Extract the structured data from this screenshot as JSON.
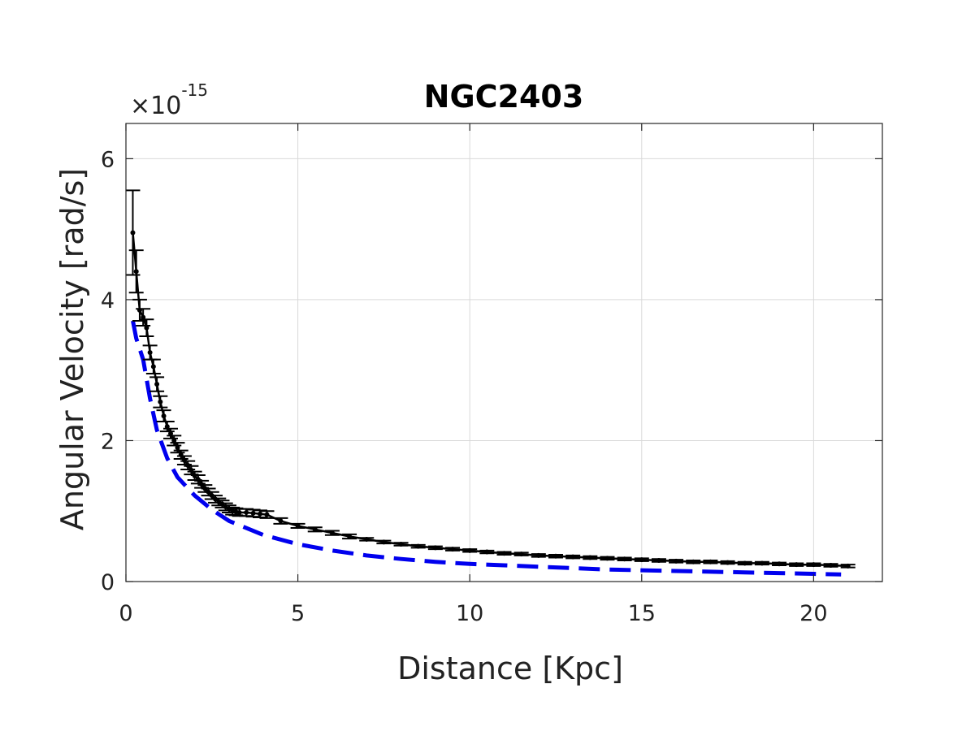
{
  "chart_data": {
    "type": "line",
    "title": "NGC2403",
    "xlabel": "Distance [Kpc]",
    "ylabel": "Angular Velocity [rad/s]",
    "y_multiplier": {
      "base": "×10",
      "exponent": "-15"
    },
    "xlim": [
      0,
      22
    ],
    "ylim": [
      0,
      6.5
    ],
    "xticks": [
      0,
      5,
      10,
      15,
      20
    ],
    "xtick_labels": [
      "0",
      "5",
      "10",
      "15",
      "20"
    ],
    "yticks": [
      0,
      2,
      4,
      6
    ],
    "ytick_labels": [
      "0",
      "2",
      "4",
      "6"
    ],
    "grid": true,
    "colors": {
      "observed": "#000000",
      "model": "#0000ee",
      "grid": "#d9d9d9",
      "axes": "#262626"
    },
    "series": [
      {
        "name": "observed",
        "style": "solid-with-errorbars",
        "x": [
          0.2,
          0.3,
          0.4,
          0.5,
          0.6,
          0.7,
          0.8,
          0.9,
          1.0,
          1.1,
          1.2,
          1.3,
          1.4,
          1.5,
          1.6,
          1.7,
          1.8,
          1.9,
          2.0,
          2.1,
          2.2,
          2.3,
          2.4,
          2.5,
          2.6,
          2.7,
          2.8,
          2.9,
          3.0,
          3.1,
          3.2,
          3.3,
          3.5,
          3.7,
          3.9,
          4.1,
          4.5,
          5.0,
          5.5,
          6.0,
          6.5,
          7.0,
          7.5,
          8.0,
          8.5,
          9.0,
          9.5,
          10.0,
          10.5,
          11.0,
          11.5,
          12.0,
          12.5,
          13.0,
          13.5,
          14.0,
          14.5,
          15.0,
          15.5,
          16.0,
          16.5,
          17.0,
          17.5,
          18.0,
          18.5,
          19.0,
          19.5,
          20.0,
          20.5,
          21.0
        ],
        "y": [
          4.95,
          4.4,
          3.85,
          3.75,
          3.6,
          3.25,
          3.05,
          2.8,
          2.55,
          2.35,
          2.2,
          2.1,
          2.0,
          1.9,
          1.8,
          1.72,
          1.65,
          1.58,
          1.5,
          1.45,
          1.38,
          1.32,
          1.27,
          1.22,
          1.17,
          1.13,
          1.1,
          1.06,
          1.03,
          1.0,
          0.99,
          0.98,
          0.98,
          0.97,
          0.96,
          0.95,
          0.86,
          0.79,
          0.74,
          0.69,
          0.64,
          0.6,
          0.56,
          0.53,
          0.5,
          0.48,
          0.46,
          0.44,
          0.42,
          0.4,
          0.39,
          0.37,
          0.36,
          0.35,
          0.34,
          0.33,
          0.32,
          0.31,
          0.3,
          0.29,
          0.28,
          0.28,
          0.27,
          0.26,
          0.26,
          0.25,
          0.24,
          0.24,
          0.23,
          0.22
        ],
        "err": [
          0.6,
          0.3,
          0.15,
          0.12,
          0.12,
          0.1,
          0.1,
          0.1,
          0.08,
          0.08,
          0.07,
          0.07,
          0.07,
          0.07,
          0.06,
          0.06,
          0.06,
          0.06,
          0.06,
          0.06,
          0.05,
          0.05,
          0.05,
          0.05,
          0.05,
          0.05,
          0.05,
          0.05,
          0.05,
          0.05,
          0.05,
          0.05,
          0.05,
          0.05,
          0.05,
          0.05,
          0.04,
          0.03,
          0.03,
          0.03,
          0.03,
          0.02,
          0.02,
          0.02,
          0.02,
          0.02,
          0.02,
          0.02,
          0.02,
          0.02,
          0.02,
          0.02,
          0.02,
          0.02,
          0.02,
          0.02,
          0.02,
          0.02,
          0.02,
          0.02,
          0.02,
          0.02,
          0.02,
          0.02,
          0.02,
          0.02,
          0.02,
          0.02,
          0.02,
          0.02
        ]
      },
      {
        "name": "model",
        "style": "dashed",
        "x": [
          0.2,
          0.3,
          0.5,
          0.7,
          0.9,
          1.2,
          1.5,
          2.0,
          2.5,
          3.0,
          4.0,
          5.0,
          6.0,
          7.0,
          8.0,
          9.0,
          10.0,
          11.0,
          12.0,
          13.0,
          14.0,
          15.0,
          16.0,
          17.0,
          18.0,
          19.0,
          20.0,
          20.8
        ],
        "y": [
          3.7,
          3.45,
          3.15,
          2.6,
          2.15,
          1.75,
          1.48,
          1.22,
          1.02,
          0.86,
          0.66,
          0.53,
          0.44,
          0.37,
          0.32,
          0.28,
          0.25,
          0.23,
          0.21,
          0.19,
          0.17,
          0.16,
          0.15,
          0.14,
          0.13,
          0.12,
          0.11,
          0.1
        ]
      }
    ]
  }
}
